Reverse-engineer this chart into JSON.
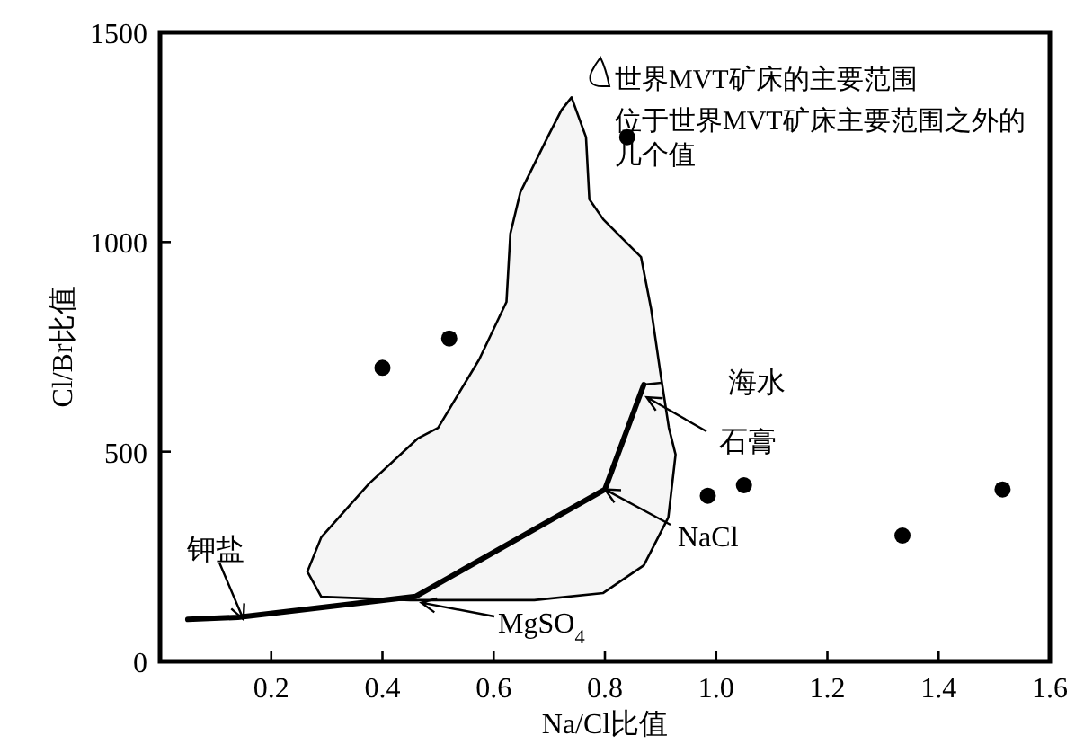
{
  "chart_data": {
    "type": "scatter",
    "xlabel": "Na/Cl比值",
    "ylabel": "Cl/Br比值",
    "xlim": [
      0,
      1.6
    ],
    "ylim": [
      0,
      1500
    ],
    "xticks": [
      0.2,
      0.4,
      0.6,
      0.8,
      {
        "value": 1,
        "label": "1.0"
      },
      1.2,
      1.4,
      1.6
    ],
    "yticks": [
      0,
      500,
      1000,
      1500
    ],
    "grid": false,
    "legend": "top right",
    "series": [
      {
        "name": "世界MVT矿床的主要范围",
        "type": "area",
        "color": "#000000",
        "x": [
          0.74,
          0.766,
          0.772,
          0.797,
          0.865,
          0.883,
          0.9,
          0.915,
          0.927,
          0.914,
          0.87,
          0.797,
          0.673,
          0.45,
          0.29,
          0.265,
          0.29,
          0.376,
          0.463,
          0.5,
          0.574,
          0.623,
          0.63,
          0.648,
          0.697,
          0.722,
          0.74
        ],
        "values": [
          1345,
          1250,
          1102,
          1054,
          964,
          841,
          686,
          557,
          493,
          343,
          229,
          163,
          146,
          146,
          154,
          214,
          296,
          424,
          531,
          557,
          720,
          857,
          1020,
          1119,
          1250,
          1315,
          1345
        ]
      },
      {
        "type": "line",
        "color": "#000000",
        "marker": "none",
        "x": [
          0.05,
          0.14,
          0.46,
          0.8,
          0.87
        ],
        "values": [
          100,
          105,
          155,
          410,
          660
        ]
      },
      {
        "name": "位于世界MVT矿床主要范围之外的几个值",
        "color": "#000000",
        "marker": "circle",
        "x": [
          0.4,
          0.52,
          0.84,
          0.985,
          1.05,
          1.335,
          1.515
        ],
        "values": [
          700,
          770,
          1250,
          395,
          420,
          300,
          410
        ]
      }
    ],
    "annotations": [
      {
        "text": "海水",
        "x": 0.87,
        "y": 660
      },
      {
        "text": "石膏",
        "x": 0.875,
        "y": 630
      },
      {
        "text": "NaCl",
        "x": 0.8,
        "y": 410
      },
      {
        "text": "MgSO$_{4}$",
        "x": 0.47,
        "y": 140
      },
      {
        "text": "钾盐",
        "x": 0.15,
        "y": 100
      }
    ]
  }
}
